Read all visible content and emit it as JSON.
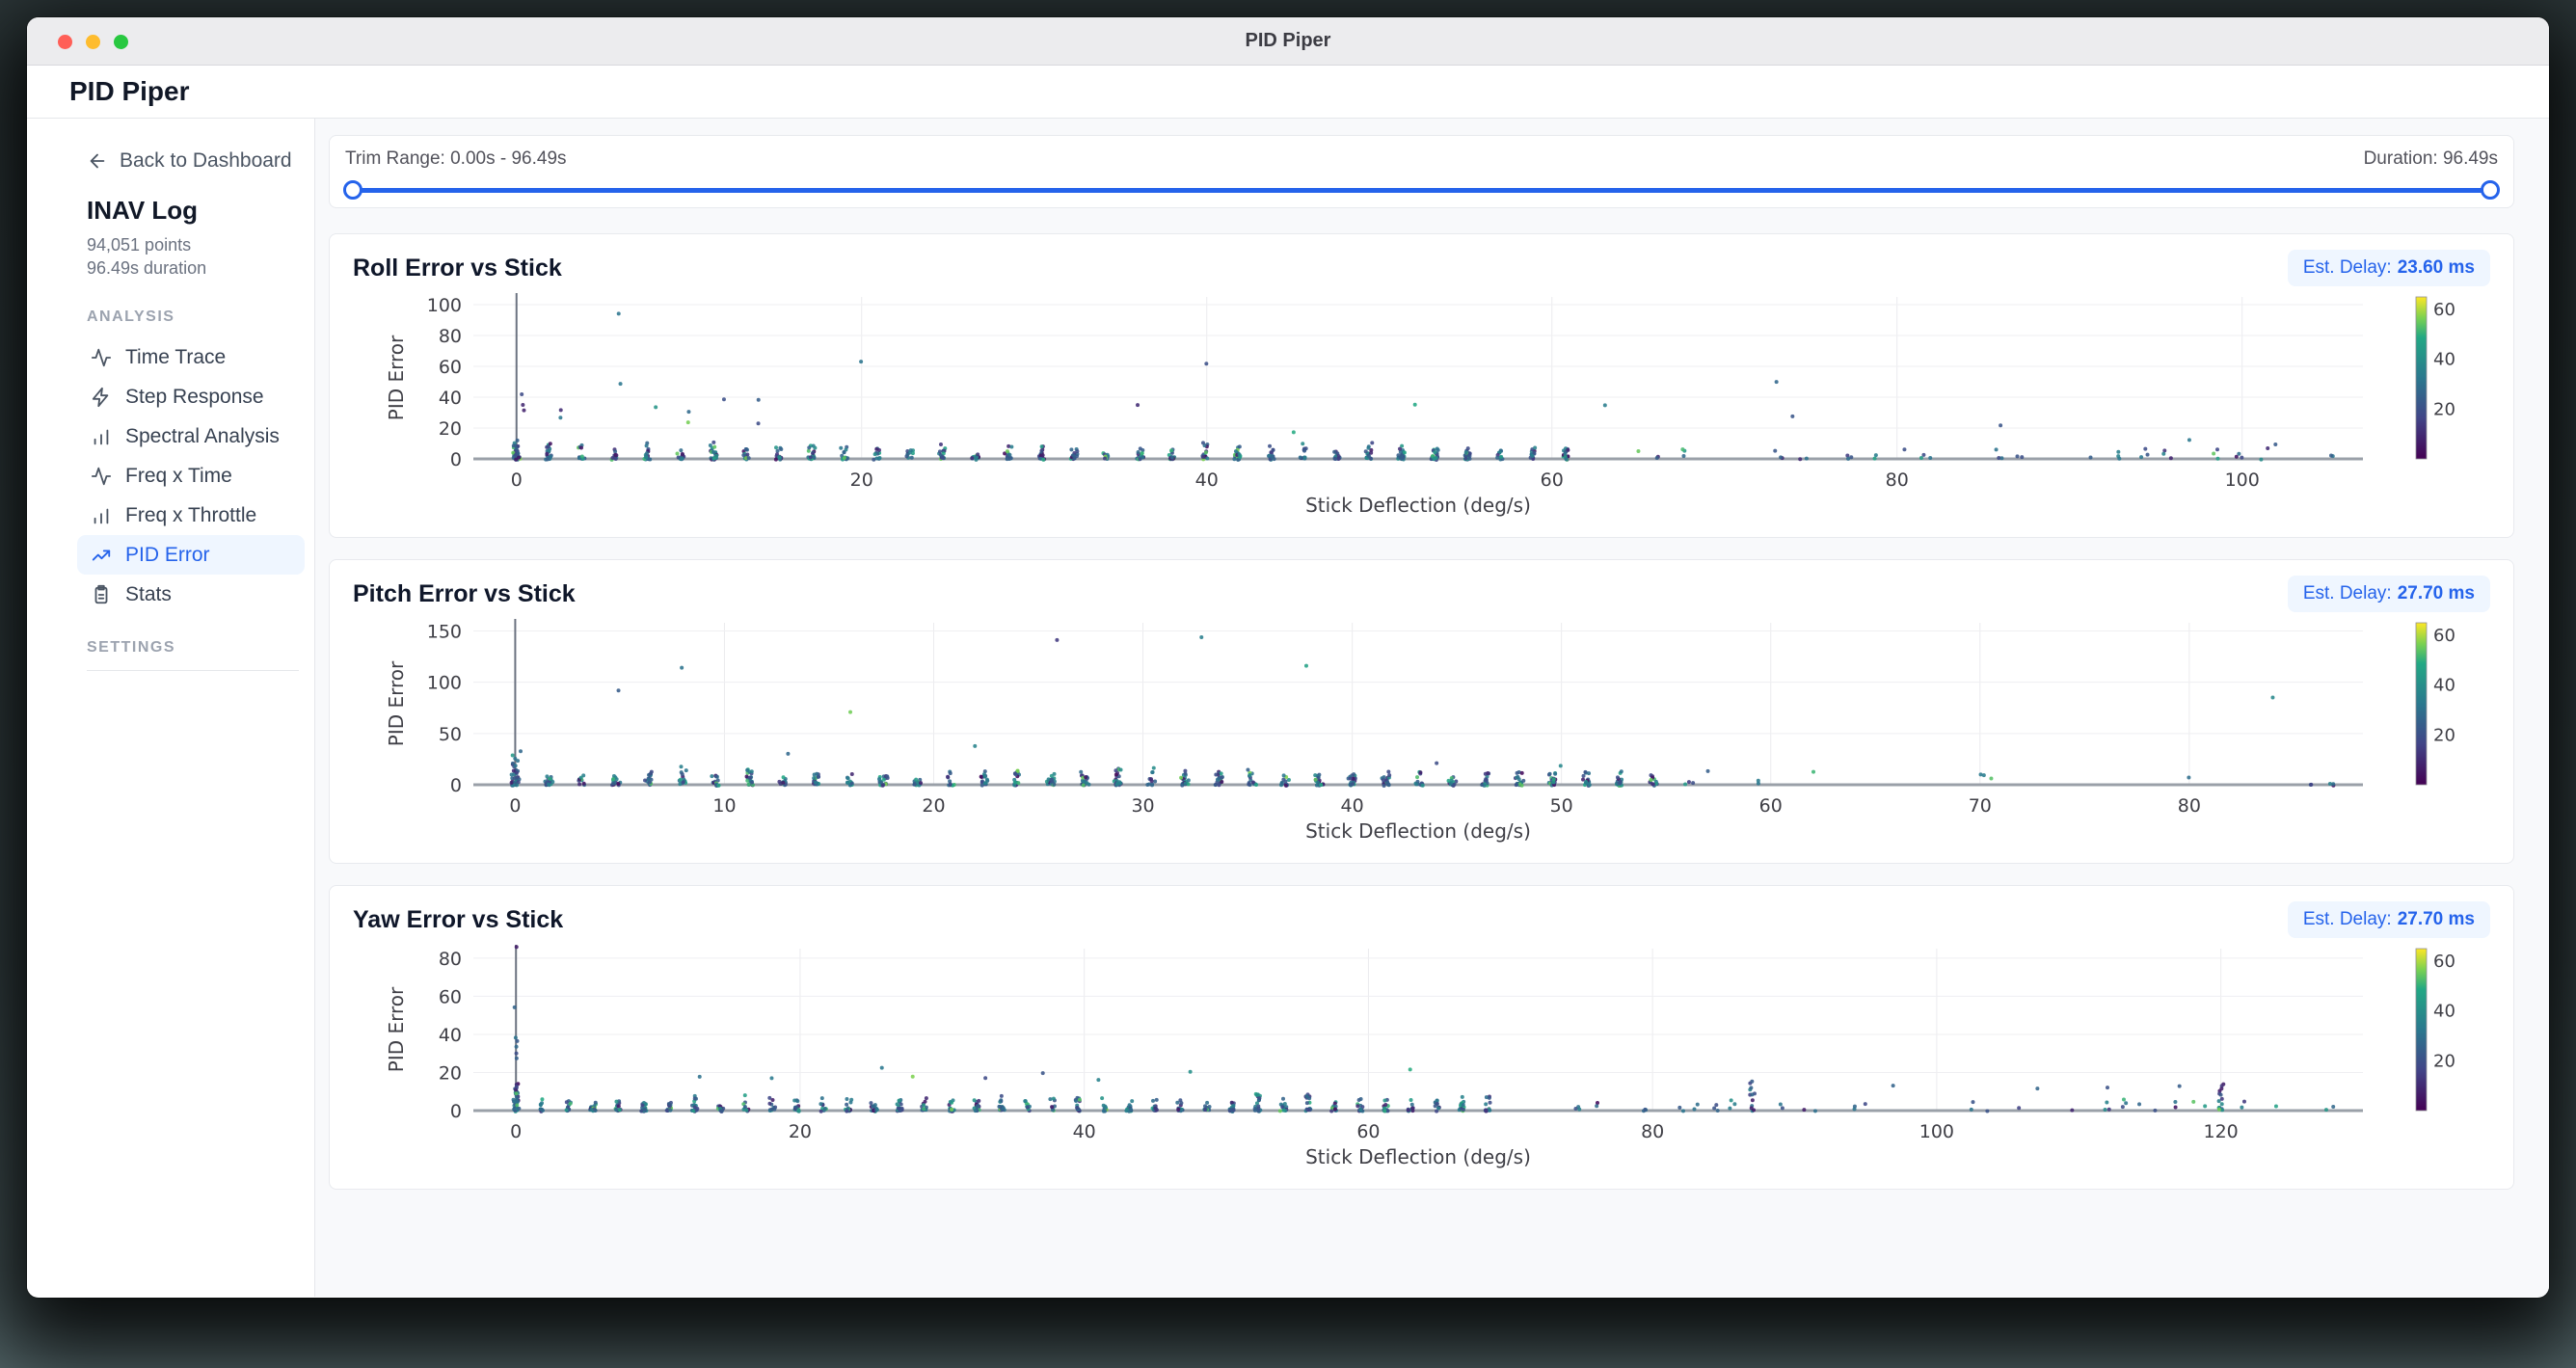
{
  "window": {
    "title": "PID Piper"
  },
  "header": {
    "app_title": "PID Piper"
  },
  "sidebar": {
    "back_label": "Back to Dashboard",
    "log_name": "INAV Log",
    "log_points": "94,051 points",
    "log_duration": "96.49s duration",
    "analysis_section": "ANALYSIS",
    "settings_section": "SETTINGS",
    "items": [
      {
        "label": "Time Trace",
        "icon": "activity",
        "active": false
      },
      {
        "label": "Step Response",
        "icon": "zap",
        "active": false
      },
      {
        "label": "Spectral Analysis",
        "icon": "bars",
        "active": false
      },
      {
        "label": "Freq x Time",
        "icon": "activity",
        "active": false
      },
      {
        "label": "Freq x Throttle",
        "icon": "bars",
        "active": false
      },
      {
        "label": "PID Error",
        "icon": "trend",
        "active": true
      },
      {
        "label": "Stats",
        "icon": "clipboard",
        "active": false
      }
    ]
  },
  "trim": {
    "label": "Trim Range: 0.00s - 96.49s",
    "duration": "Duration: 96.49s"
  },
  "colors": {
    "accent": "#2563eb",
    "badge_bg": "#eff6ff",
    "traffic_lights": [
      "#ff5f57",
      "#febc2e",
      "#28c840"
    ],
    "viridis": [
      "#440154",
      "#414487",
      "#2a788e",
      "#22a884",
      "#7ad151",
      "#fde725"
    ]
  },
  "chart_data": [
    {
      "type": "scatter",
      "title": "Roll Error vs Stick",
      "est_delay_label": "Est. Delay:",
      "est_delay_value": "23.60 ms",
      "xlabel": "Stick Deflection (deg/s)",
      "ylabel": "PID Error",
      "x_ticks": [
        0,
        20,
        40,
        60,
        80,
        100
      ],
      "y_ticks": [
        0,
        20,
        40,
        60,
        80,
        100
      ],
      "x_range": [
        -2.5,
        107
      ],
      "y_range": [
        0,
        105
      ],
      "colorbar": {
        "ticks": [
          20,
          40,
          60
        ],
        "range": [
          0,
          65
        ]
      },
      "seed": 11,
      "scatter": {
        "col_step": 1.9,
        "dense_x_end": 62,
        "col_max_y": 11,
        "pts_min": 10,
        "pts_max": 26,
        "zero_col": {
          "max_y": 12,
          "n": 45
        },
        "sparse_step": 1.4,
        "sparse_x_end": 106,
        "sparse_p": 0.55,
        "sparse_max_y": 7,
        "tall_cols": [],
        "outliers": [
          [
            5.9,
            94
          ],
          [
            6,
            49
          ],
          [
            0.3,
            42
          ],
          [
            0.3,
            35
          ],
          [
            0.4,
            32
          ],
          [
            2.6,
            32
          ],
          [
            2.5,
            27
          ],
          [
            8,
            34
          ],
          [
            12,
            38
          ],
          [
            14,
            38
          ],
          [
            10,
            31
          ],
          [
            10,
            24
          ],
          [
            14,
            23
          ],
          [
            20,
            63
          ],
          [
            40,
            62
          ],
          [
            36,
            35
          ],
          [
            52,
            35
          ],
          [
            63,
            35
          ],
          [
            73,
            50
          ],
          [
            74,
            28
          ],
          [
            86,
            22
          ],
          [
            45,
            17
          ],
          [
            97,
            12
          ],
          [
            102,
            10
          ]
        ]
      }
    },
    {
      "type": "scatter",
      "title": "Pitch Error vs Stick",
      "est_delay_label": "Est. Delay:",
      "est_delay_value": "27.70 ms",
      "xlabel": "Stick Deflection (deg/s)",
      "ylabel": "PID Error",
      "x_ticks": [
        0,
        10,
        20,
        30,
        40,
        50,
        60,
        70,
        80
      ],
      "y_ticks": [
        0,
        50,
        100,
        150
      ],
      "x_range": [
        -2,
        88.3
      ],
      "y_range": [
        0,
        158
      ],
      "colorbar": {
        "ticks": [
          20,
          40,
          60
        ],
        "range": [
          0,
          65
        ]
      },
      "seed": 22,
      "scatter": {
        "col_step": 1.6,
        "dense_x_end": 55,
        "col_max_y": 18,
        "pts_min": 10,
        "pts_max": 24,
        "zero_col": {
          "max_y": 32,
          "n": 40
        },
        "sparse_step": 1.1,
        "sparse_x_end": 87,
        "sparse_p": 0.5,
        "sparse_max_y": 10,
        "tall_cols": [],
        "outliers": [
          [
            7.9,
            114
          ],
          [
            5,
            92
          ],
          [
            16,
            71
          ],
          [
            25.9,
            141
          ],
          [
            32.8,
            143
          ],
          [
            37.8,
            116
          ],
          [
            22,
            37
          ],
          [
            13,
            30
          ],
          [
            0.3,
            32
          ],
          [
            44,
            22
          ],
          [
            50,
            18
          ],
          [
            57,
            14
          ],
          [
            62,
            12
          ],
          [
            70,
            10
          ],
          [
            80,
            8
          ],
          [
            84,
            86
          ]
        ]
      }
    },
    {
      "type": "scatter",
      "title": "Yaw Error vs Stick",
      "est_delay_label": "Est. Delay:",
      "est_delay_value": "27.70 ms",
      "xlabel": "Stick Deflection (deg/s)",
      "ylabel": "PID Error",
      "x_ticks": [
        0,
        20,
        40,
        60,
        80,
        100,
        120
      ],
      "y_ticks": [
        0,
        20,
        40,
        60,
        80
      ],
      "x_range": [
        -3,
        130
      ],
      "y_range": [
        0,
        85
      ],
      "colorbar": {
        "ticks": [
          20,
          40,
          60
        ],
        "range": [
          0,
          65
        ]
      },
      "seed": 33,
      "scatter": {
        "col_step": 1.8,
        "dense_x_end": 70,
        "col_max_y": 9,
        "pts_min": 8,
        "pts_max": 22,
        "zero_col": {
          "max_y": 14,
          "n": 50
        },
        "sparse_step": 1.2,
        "sparse_x_end": 128,
        "sparse_p": 0.5,
        "sparse_max_y": 6,
        "tall_cols": [
          [
            87,
            15,
            12
          ],
          [
            120,
            15,
            14
          ]
        ],
        "outliers": [
          [
            0,
            86
          ],
          [
            0,
            54
          ],
          [
            0,
            38
          ],
          [
            0,
            36
          ],
          [
            0,
            34
          ],
          [
            0,
            30
          ],
          [
            0,
            27
          ],
          [
            25.8,
            22
          ],
          [
            37,
            20
          ],
          [
            47.5,
            20
          ],
          [
            63,
            22
          ],
          [
            13,
            18
          ],
          [
            18,
            17
          ],
          [
            28,
            18
          ],
          [
            33,
            17
          ],
          [
            41,
            16
          ],
          [
            97,
            13
          ],
          [
            107,
            12
          ],
          [
            112,
            12
          ],
          [
            117,
            13
          ]
        ]
      }
    }
  ]
}
